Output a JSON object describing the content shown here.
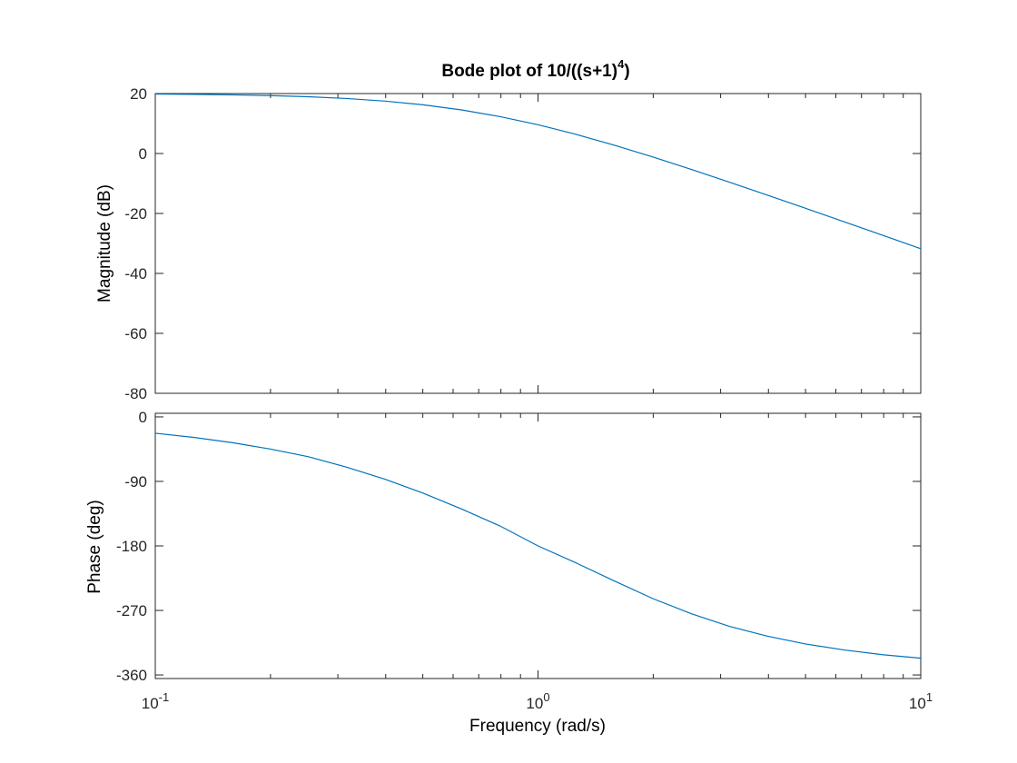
{
  "chart_data": [
    {
      "type": "line",
      "title": "Bode plot of 10/((s+1)",
      "title_superscript": "4",
      "title_suffix": ")",
      "xlabel": "",
      "ylabel": "Magnitude (dB)",
      "xscale": "log",
      "xlim": [
        0.1,
        10
      ],
      "ylim": [
        -80,
        20
      ],
      "yticks": [
        20,
        0,
        -20,
        -40,
        -60,
        -80
      ],
      "ytick_labels": [
        "20",
        "0",
        "-20",
        "-40",
        "-60",
        "-80"
      ],
      "grid": false,
      "color": "#0072BD",
      "x": [
        0.1,
        0.1259,
        0.1585,
        0.1995,
        0.2512,
        0.3162,
        0.3981,
        0.5012,
        0.631,
        0.7943,
        1.0,
        1.2589,
        1.5849,
        1.9953,
        2.5119,
        3.1623,
        3.9811,
        5.0119,
        6.3096,
        7.9433,
        10.0
      ],
      "y": [
        19.83,
        19.73,
        19.57,
        19.32,
        18.94,
        18.35,
        17.48,
        16.25,
        14.55,
        12.32,
        9.59,
        6.37,
        2.75,
        -1.17,
        -5.29,
        -9.58,
        -13.92,
        -18.33,
        -22.78,
        -27.25,
        -31.75
      ]
    },
    {
      "type": "line",
      "title": "",
      "xlabel": "Frequency  (rad/s)",
      "ylabel": "Phase (deg)",
      "xscale": "log",
      "xlim": [
        0.1,
        10
      ],
      "ylim": [
        -365,
        5
      ],
      "yticks": [
        0,
        -90,
        -180,
        -270,
        -360
      ],
      "ytick_labels": [
        "0",
        "-90",
        "-180",
        "-270",
        "-360"
      ],
      "grid": false,
      "color": "#0072BD",
      "x": [
        0.1,
        0.1259,
        0.1585,
        0.1995,
        0.2512,
        0.3162,
        0.3981,
        0.5012,
        0.631,
        0.7943,
        1.0,
        1.2589,
        1.5849,
        1.9953,
        2.5119,
        3.1623,
        3.9811,
        5.0119,
        6.3096,
        7.9433,
        10.0
      ],
      "y": [
        -22.8,
        -28.6,
        -35.9,
        -44.8,
        -55.6,
        -70.1,
        -86.9,
        -106.5,
        -128.5,
        -152.0,
        -180.0,
        -203.9,
        -229.0,
        -253.5,
        -274.5,
        -292.2,
        -306.0,
        -316.9,
        -325.2,
        -331.7,
        -336.6
      ]
    }
  ],
  "x_tick_labels": [
    {
      "base": "10",
      "exp": "-1"
    },
    {
      "base": "10",
      "exp": "0"
    },
    {
      "base": "10",
      "exp": "1"
    }
  ]
}
